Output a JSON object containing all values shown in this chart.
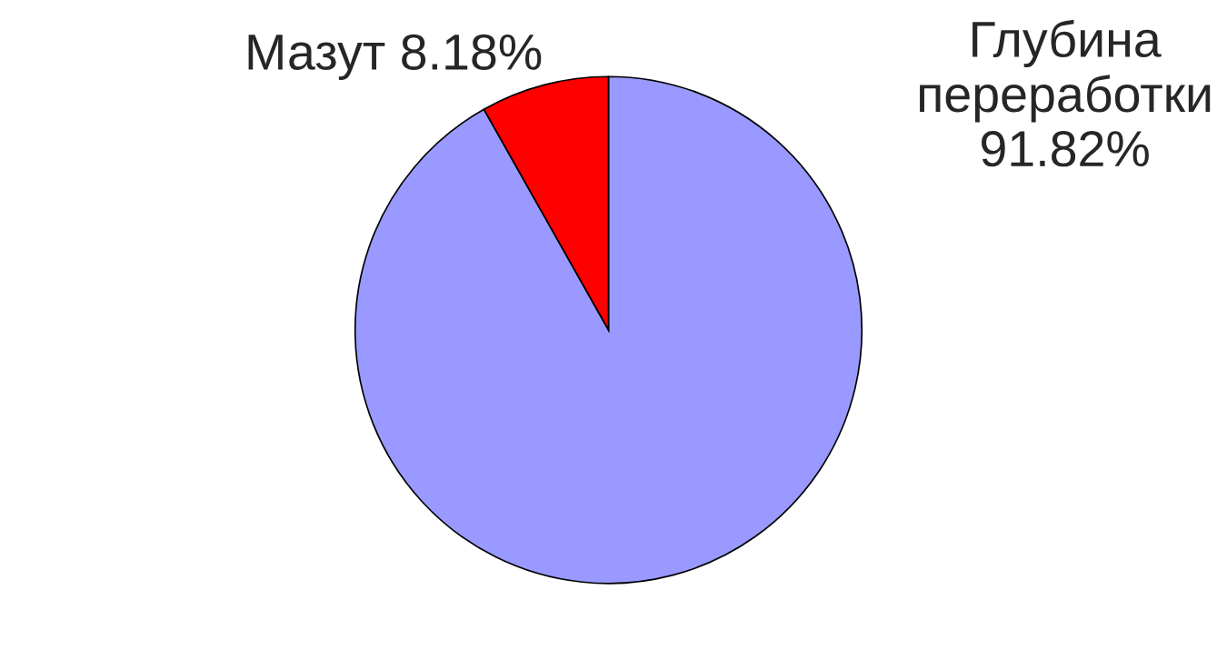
{
  "chart_data": {
    "type": "pie",
    "categories": [
      "Глубина переработки",
      "Мазут"
    ],
    "values": [
      91.82,
      8.18
    ],
    "colors": [
      "#9999ff",
      "#ff0000"
    ],
    "value_labels": [
      "91.82%",
      "8.18%"
    ]
  }
}
